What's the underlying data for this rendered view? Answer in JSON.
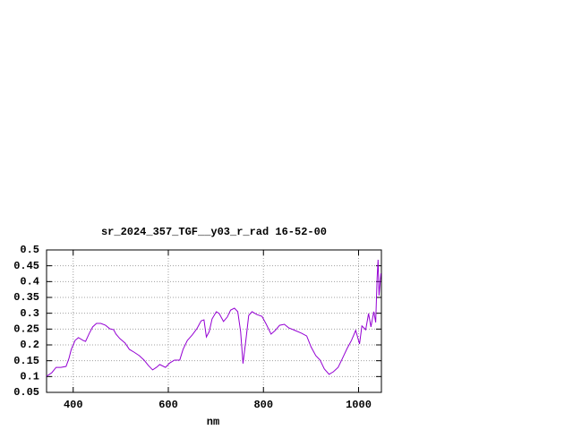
{
  "chart_data": {
    "type": "line",
    "title": "sr_2024_357_TGF__y03_r_rad 16-52-00",
    "x_label": "nm",
    "xlim": [
      344,
      1048
    ],
    "xticks": [
      400,
      600,
      800,
      1000
    ],
    "ylim": [
      0.05,
      0.5
    ],
    "yticks": [
      0.5,
      0.45,
      0.4,
      0.35,
      0.3,
      0.25,
      0.2,
      0.15,
      0.1,
      0.05
    ],
    "grid": true,
    "series": [
      {
        "color": "#9400d3",
        "x": [
          344,
          355,
          364,
          374,
          385,
          391,
          396,
          404,
          411,
          421,
          426,
          434,
          441,
          449,
          458,
          468,
          477,
          485,
          490,
          498,
          509,
          518,
          528,
          539,
          549,
          558,
          567,
          575,
          582,
          594,
          603,
          613,
          624,
          631,
          640,
          650,
          660,
          669,
          675,
          680,
          686,
          692,
          701,
          707,
          716,
          724,
          731,
          739,
          746,
          752,
          757,
          763,
          769,
          776,
          786,
          797,
          806,
          816,
          825,
          834,
          844,
          853,
          866,
          880,
          891,
          900,
          910,
          919,
          928,
          938,
          947,
          957,
          966,
          976,
          985,
          994,
          1002,
          1007,
          1015,
          1021,
          1026,
          1032,
          1036,
          1039,
          1041,
          1043,
          1047
        ],
        "values": [
          0.101,
          0.112,
          0.129,
          0.129,
          0.132,
          0.157,
          0.186,
          0.214,
          0.223,
          0.214,
          0.211,
          0.237,
          0.257,
          0.268,
          0.268,
          0.262,
          0.251,
          0.248,
          0.234,
          0.22,
          0.206,
          0.186,
          0.177,
          0.166,
          0.152,
          0.135,
          0.121,
          0.129,
          0.138,
          0.129,
          0.143,
          0.152,
          0.152,
          0.186,
          0.214,
          0.231,
          0.251,
          0.276,
          0.279,
          0.225,
          0.242,
          0.282,
          0.305,
          0.299,
          0.274,
          0.288,
          0.31,
          0.316,
          0.305,
          0.242,
          0.141,
          0.214,
          0.293,
          0.305,
          0.296,
          0.29,
          0.265,
          0.234,
          0.246,
          0.262,
          0.265,
          0.254,
          0.246,
          0.237,
          0.228,
          0.194,
          0.166,
          0.152,
          0.124,
          0.107,
          0.115,
          0.129,
          0.157,
          0.189,
          0.214,
          0.246,
          0.203,
          0.26,
          0.248,
          0.299,
          0.257,
          0.305,
          0.271,
          0.412,
          0.469,
          0.356,
          0.426
        ]
      }
    ]
  }
}
